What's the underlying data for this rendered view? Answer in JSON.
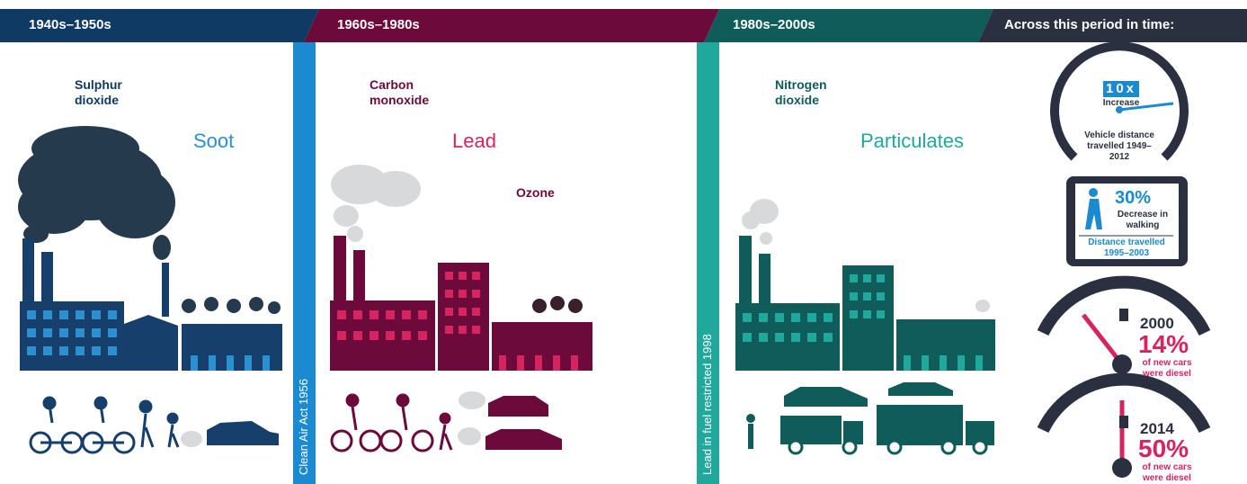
{
  "header": {
    "periods": [
      "1940s–1950s",
      "1960s–1980s",
      "1980s–2000s",
      "Across this period in time:"
    ]
  },
  "eras": [
    {
      "pollutants": [
        "Sulphur dioxide",
        "Soot"
      ]
    },
    {
      "pollutants": [
        "Carbon monoxide",
        "Lead",
        "Ozone"
      ]
    },
    {
      "pollutants": [
        "Nitrogen dioxide",
        "Particulates"
      ]
    }
  ],
  "events": [
    "Clean Air Act 1956",
    "Lead in fuel restricted 1998"
  ],
  "stats": {
    "vehicle": {
      "value": "10x",
      "label": "Increase",
      "caption": "Vehicle distance travelled 1949–2012"
    },
    "walking": {
      "value": "30%",
      "label": "Decrease in walking",
      "caption": "Distance travelled 1995–2003"
    },
    "diesel": [
      {
        "year": "2000",
        "value": "14%",
        "label": "of new cars were diesel"
      },
      {
        "year": "2014",
        "value": "50%",
        "label": "of new cars were diesel"
      }
    ]
  }
}
